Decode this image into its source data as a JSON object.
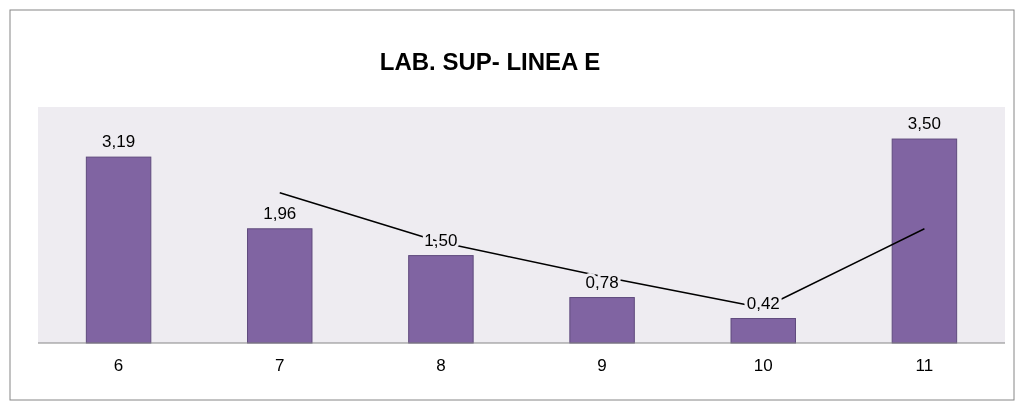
{
  "chart_data": {
    "type": "bar",
    "title": "LAB. SUP- LINEA E",
    "categories": [
      "6",
      "7",
      "8",
      "9",
      "10",
      "11"
    ],
    "ylim": [
      0,
      4.05
    ],
    "series": [
      {
        "color": "#8064a2",
        "values": [
          3.19,
          1.96,
          1.5,
          0.78,
          0.42,
          3.5
        ],
        "value_labels": [
          "3,19",
          "1,96",
          "1,50",
          "0,78",
          "0,42",
          "3,50"
        ]
      },
      {
        "type": "line",
        "color": "#000000",
        "values": [
          null,
          2.58,
          1.73,
          1.14,
          0.6,
          1.96
        ]
      }
    ],
    "marker": "none",
    "line_style": "solid"
  }
}
